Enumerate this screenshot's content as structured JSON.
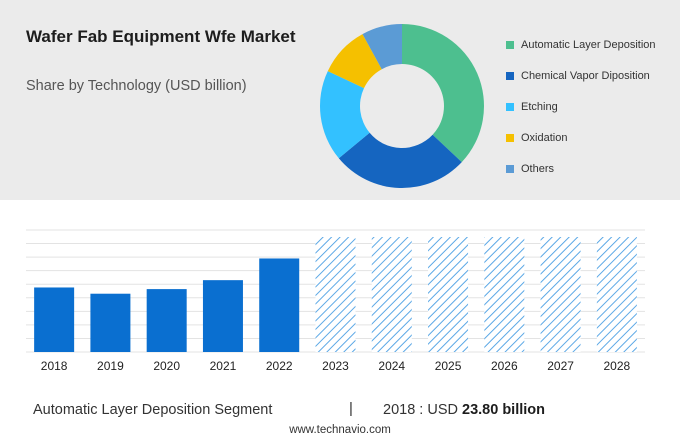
{
  "header": {
    "title": "Wafer Fab Equipment Wfe Market",
    "subtitle": "Share by Technology (USD billion)"
  },
  "donut": {
    "type": "pie",
    "style": "donut",
    "slices": [
      {
        "label": "Automatic Layer Deposition",
        "value": 37,
        "color": "#4dbf8f"
      },
      {
        "label": "Chemical Vapor Diposition",
        "value": 27,
        "color": "#1565c0"
      },
      {
        "label": "Etching",
        "value": 18,
        "color": "#33c1ff"
      },
      {
        "label": "Oxidation",
        "value": 10,
        "color": "#f5c000"
      },
      {
        "label": "Others",
        "value": 8,
        "color": "#5b9bd5"
      }
    ]
  },
  "chart_data": {
    "type": "bar",
    "categories": [
      "2018",
      "2019",
      "2020",
      "2021",
      "2022",
      "2023",
      "2024",
      "2025",
      "2026",
      "2027",
      "2028"
    ],
    "values": [
      23.8,
      21.5,
      23.2,
      26.5,
      34.5,
      null,
      null,
      null,
      null,
      null,
      null
    ],
    "forecast_categories": [
      "2023",
      "2024",
      "2025",
      "2026",
      "2027",
      "2028"
    ],
    "bar_color": "#0a6fd0",
    "forecast_color": "#5ba8e6",
    "ylim": [
      0,
      45
    ],
    "grid": true
  },
  "footer": {
    "segment": "Automatic Layer Deposition Segment",
    "separator": "|",
    "year_label": "2018 : USD",
    "value_label": "23.80 billion",
    "source": "www.technavio.com"
  }
}
